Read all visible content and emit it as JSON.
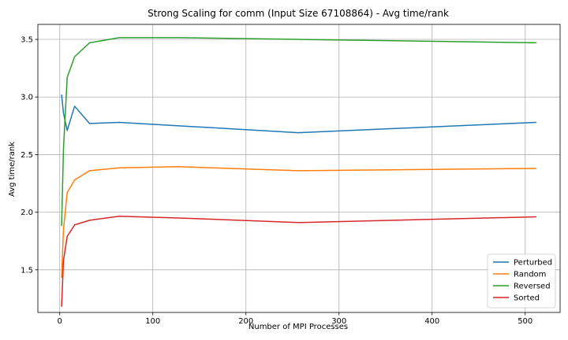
{
  "chart_data": {
    "type": "line",
    "title": "Strong Scaling for comm (Input Size 67108864) - Avg time/rank",
    "xlabel": "Number of MPI Processes",
    "ylabel": "Avg time/rank",
    "xlim": [
      -23.5,
      537.5
    ],
    "ylim": [
      1.13,
      3.63
    ],
    "xticks": [
      0,
      100,
      200,
      300,
      400,
      500
    ],
    "yticks": [
      1.5,
      2.0,
      2.5,
      3.0,
      3.5
    ],
    "ytick_labels": [
      "1.5",
      "2.0",
      "2.5",
      "3.0",
      "3.5"
    ],
    "grid": true,
    "legend_position": "lower-right",
    "series": [
      {
        "name": "Perturbed",
        "color": "#1f77b4",
        "x": [
          2,
          4,
          8,
          16,
          32,
          64,
          128,
          256,
          512
        ],
        "y": [
          3.02,
          2.86,
          2.71,
          2.92,
          2.77,
          2.78,
          2.75,
          2.69,
          2.78
        ]
      },
      {
        "name": "Random",
        "color": "#ff7f0e",
        "x": [
          2,
          4,
          8,
          16,
          32,
          64,
          128,
          256,
          512
        ],
        "y": [
          1.43,
          1.85,
          2.17,
          2.28,
          2.36,
          2.385,
          2.395,
          2.36,
          2.38
        ]
      },
      {
        "name": "Reversed",
        "color": "#2ca02c",
        "x": [
          2,
          4,
          8,
          16,
          32,
          64,
          128,
          256,
          512
        ],
        "y": [
          1.88,
          2.55,
          3.17,
          3.35,
          3.47,
          3.515,
          3.515,
          3.5,
          3.47
        ]
      },
      {
        "name": "Sorted",
        "color": "#d62728",
        "x": [
          2,
          4,
          8,
          16,
          32,
          64,
          128,
          256,
          512
        ],
        "y": [
          1.18,
          1.58,
          1.79,
          1.89,
          1.93,
          1.965,
          1.95,
          1.91,
          1.96
        ]
      }
    ]
  }
}
